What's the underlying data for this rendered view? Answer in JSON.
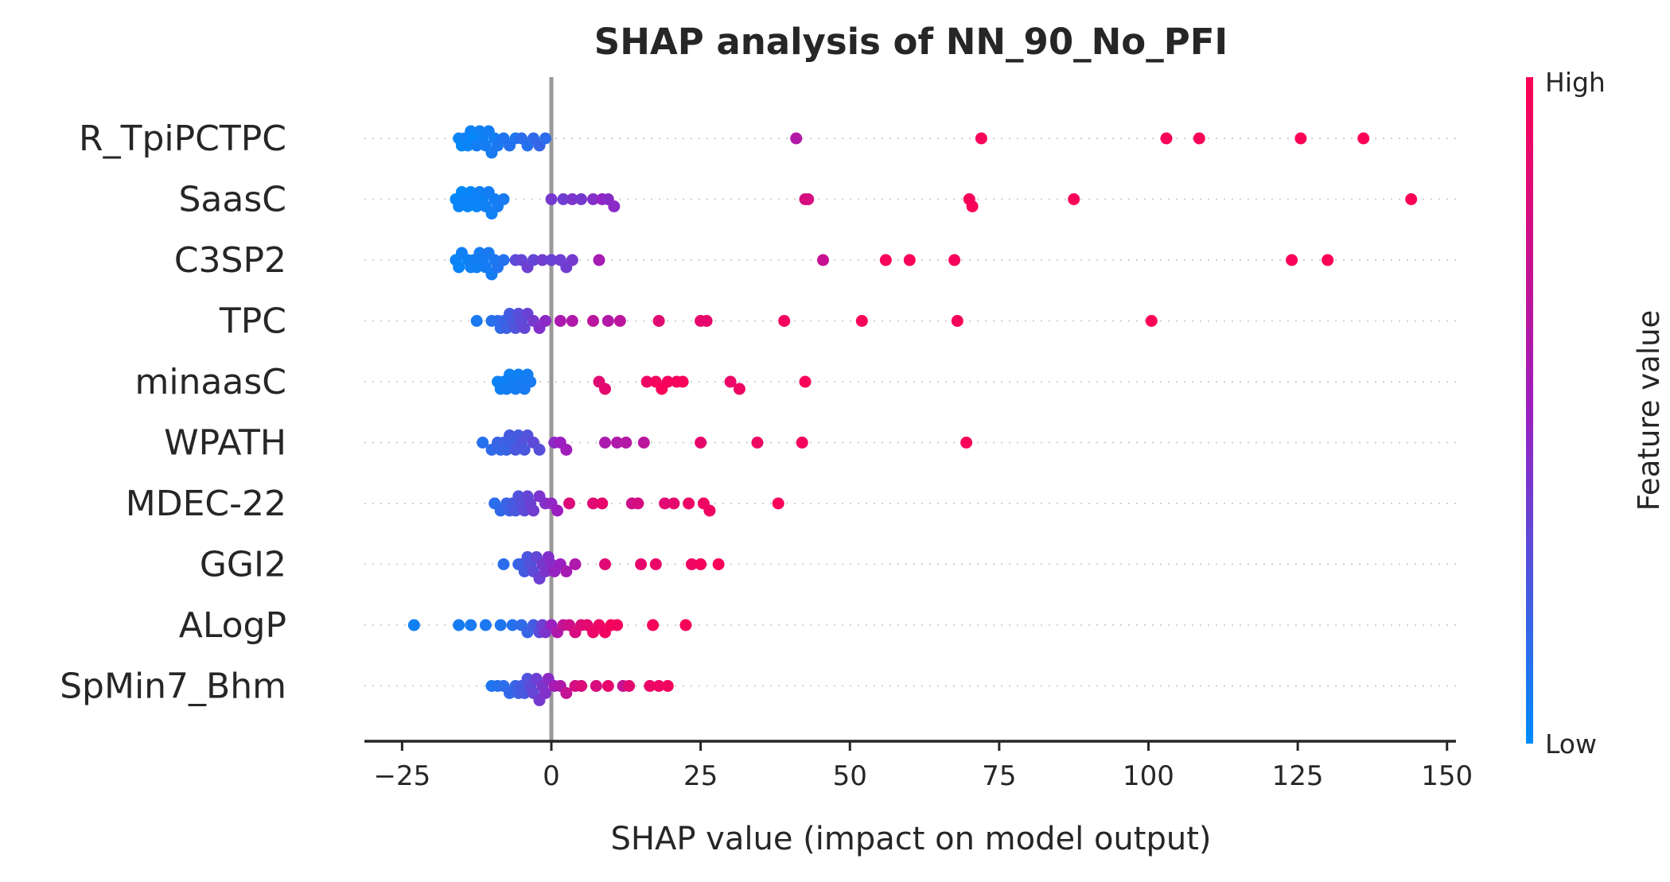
{
  "chart_data": {
    "type": "scatter",
    "title": "SHAP analysis of NN_90_No_PFI",
    "xlabel": "SHAP value (impact on model output)",
    "xlim": [
      -31,
      152
    ],
    "x_ticks": [
      -25,
      0,
      25,
      50,
      75,
      100,
      125,
      150
    ],
    "x_tick_labels": [
      "−25",
      "0",
      "25",
      "50",
      "75",
      "100",
      "125",
      "150"
    ],
    "zero_line": true,
    "grid": false,
    "colorbar": {
      "label": "Feature value",
      "high_label": "High",
      "low_label": "Low",
      "low_color": "#008bfb",
      "mid_color": "#9b1fc0",
      "high_color": "#ff0052"
    },
    "features": [
      {
        "name": "R_TpiPCTPC",
        "points": [
          {
            "x": -15.5,
            "c": 0.03
          },
          {
            "x": -15,
            "c": 0.02
          },
          {
            "x": -14.5,
            "c": 0.05
          },
          {
            "x": -14,
            "c": 0.03
          },
          {
            "x": -13.5,
            "c": 0.04
          },
          {
            "x": -13,
            "c": 0.02
          },
          {
            "x": -12.5,
            "c": 0.06
          },
          {
            "x": -12,
            "c": 0.05
          },
          {
            "x": -11.5,
            "c": 0.04
          },
          {
            "x": -11,
            "c": 0.07
          },
          {
            "x": -10.5,
            "c": 0.06
          },
          {
            "x": -10,
            "c": 0.08
          },
          {
            "x": -9.5,
            "c": 0.06
          },
          {
            "x": -9,
            "c": 0.09
          },
          {
            "x": -8,
            "c": 0.1
          },
          {
            "x": -7,
            "c": 0.12
          },
          {
            "x": -6,
            "c": 0.1
          },
          {
            "x": -5,
            "c": 0.14
          },
          {
            "x": -4,
            "c": 0.12
          },
          {
            "x": -3,
            "c": 0.15
          },
          {
            "x": -2,
            "c": 0.17
          },
          {
            "x": -1,
            "c": 0.14
          },
          {
            "x": 41,
            "c": 0.62
          },
          {
            "x": 72,
            "c": 0.97
          },
          {
            "x": 103,
            "c": 0.97
          },
          {
            "x": 108.5,
            "c": 0.97
          },
          {
            "x": 125.5,
            "c": 0.98
          },
          {
            "x": 136,
            "c": 0.98
          }
        ]
      },
      {
        "name": "SaasC",
        "points": [
          {
            "x": -16,
            "c": 0.02
          },
          {
            "x": -15.5,
            "c": 0.03
          },
          {
            "x": -15,
            "c": 0.02
          },
          {
            "x": -14.5,
            "c": 0.04
          },
          {
            "x": -14,
            "c": 0.03
          },
          {
            "x": -13.5,
            "c": 0.02
          },
          {
            "x": -13,
            "c": 0.04
          },
          {
            "x": -12.5,
            "c": 0.03
          },
          {
            "x": -12,
            "c": 0.05
          },
          {
            "x": -11.5,
            "c": 0.04
          },
          {
            "x": -11,
            "c": 0.05
          },
          {
            "x": -10.5,
            "c": 0.06
          },
          {
            "x": -10,
            "c": 0.05
          },
          {
            "x": -9.5,
            "c": 0.06
          },
          {
            "x": -9,
            "c": 0.07
          },
          {
            "x": -8,
            "c": 0.08
          },
          {
            "x": 0,
            "c": 0.38
          },
          {
            "x": 2,
            "c": 0.36
          },
          {
            "x": 3.5,
            "c": 0.4
          },
          {
            "x": 5,
            "c": 0.38
          },
          {
            "x": 7,
            "c": 0.42
          },
          {
            "x": 8.5,
            "c": 0.47
          },
          {
            "x": 9.5,
            "c": 0.44
          },
          {
            "x": 10.5,
            "c": 0.45
          },
          {
            "x": 42.5,
            "c": 0.78
          },
          {
            "x": 43,
            "c": 0.8
          },
          {
            "x": 70,
            "c": 0.97
          },
          {
            "x": 70.5,
            "c": 0.97
          },
          {
            "x": 87.5,
            "c": 0.97
          },
          {
            "x": 144,
            "c": 0.98
          }
        ]
      },
      {
        "name": "C3SP2",
        "points": [
          {
            "x": -16,
            "c": 0.04
          },
          {
            "x": -15.5,
            "c": 0.03
          },
          {
            "x": -15,
            "c": 0.05
          },
          {
            "x": -14,
            "c": 0.04
          },
          {
            "x": -13.5,
            "c": 0.05
          },
          {
            "x": -13,
            "c": 0.06
          },
          {
            "x": -12.5,
            "c": 0.05
          },
          {
            "x": -12,
            "c": 0.07
          },
          {
            "x": -11.5,
            "c": 0.06
          },
          {
            "x": -11,
            "c": 0.07
          },
          {
            "x": -10.5,
            "c": 0.08
          },
          {
            "x": -10,
            "c": 0.07
          },
          {
            "x": -9.5,
            "c": 0.09
          },
          {
            "x": -9,
            "c": 0.1
          },
          {
            "x": -8,
            "c": 0.12
          },
          {
            "x": -6,
            "c": 0.3
          },
          {
            "x": -5,
            "c": 0.33
          },
          {
            "x": -4,
            "c": 0.35
          },
          {
            "x": -3,
            "c": 0.32
          },
          {
            "x": -1.5,
            "c": 0.36
          },
          {
            "x": 0,
            "c": 0.34
          },
          {
            "x": 1.5,
            "c": 0.35
          },
          {
            "x": 2.5,
            "c": 0.36
          },
          {
            "x": 3.5,
            "c": 0.38
          },
          {
            "x": 8,
            "c": 0.55
          },
          {
            "x": 45.5,
            "c": 0.72
          },
          {
            "x": 56,
            "c": 0.97
          },
          {
            "x": 60,
            "c": 0.97
          },
          {
            "x": 67.5,
            "c": 0.96
          },
          {
            "x": 124,
            "c": 0.97
          },
          {
            "x": 130,
            "c": 0.98
          }
        ]
      },
      {
        "name": "TPC",
        "points": [
          {
            "x": -12.5,
            "c": 0.08
          },
          {
            "x": -10,
            "c": 0.12
          },
          {
            "x": -9,
            "c": 0.14
          },
          {
            "x": -8.5,
            "c": 0.15
          },
          {
            "x": -8,
            "c": 0.17
          },
          {
            "x": -7.5,
            "c": 0.2
          },
          {
            "x": -7,
            "c": 0.22
          },
          {
            "x": -6.5,
            "c": 0.24
          },
          {
            "x": -6,
            "c": 0.26
          },
          {
            "x": -5.5,
            "c": 0.28
          },
          {
            "x": -5,
            "c": 0.3
          },
          {
            "x": -4.5,
            "c": 0.32
          },
          {
            "x": -4,
            "c": 0.34
          },
          {
            "x": -3,
            "c": 0.38
          },
          {
            "x": -2,
            "c": 0.42
          },
          {
            "x": -1,
            "c": 0.45
          },
          {
            "x": 1.5,
            "c": 0.58
          },
          {
            "x": 3.5,
            "c": 0.6
          },
          {
            "x": 7,
            "c": 0.65
          },
          {
            "x": 9.5,
            "c": 0.62
          },
          {
            "x": 11.5,
            "c": 0.66
          },
          {
            "x": 18,
            "c": 0.85
          },
          {
            "x": 25,
            "c": 0.88
          },
          {
            "x": 26,
            "c": 0.88
          },
          {
            "x": 39,
            "c": 0.95
          },
          {
            "x": 52,
            "c": 0.97
          },
          {
            "x": 68,
            "c": 0.96
          },
          {
            "x": 100.5,
            "c": 0.98
          }
        ]
      },
      {
        "name": "minaasC",
        "points": [
          {
            "x": -9,
            "c": 0.04
          },
          {
            "x": -8.5,
            "c": 0.05
          },
          {
            "x": -8,
            "c": 0.04
          },
          {
            "x": -7.5,
            "c": 0.06
          },
          {
            "x": -7,
            "c": 0.05
          },
          {
            "x": -6.5,
            "c": 0.06
          },
          {
            "x": -6,
            "c": 0.07
          },
          {
            "x": -5.5,
            "c": 0.05
          },
          {
            "x": -5,
            "c": 0.07
          },
          {
            "x": -4.5,
            "c": 0.08
          },
          {
            "x": -4,
            "c": 0.06
          },
          {
            "x": -3.5,
            "c": 0.08
          },
          {
            "x": 8,
            "c": 0.85
          },
          {
            "x": 9,
            "c": 0.87
          },
          {
            "x": 16,
            "c": 0.92
          },
          {
            "x": 17.5,
            "c": 0.95
          },
          {
            "x": 18.5,
            "c": 0.97
          },
          {
            "x": 19.5,
            "c": 0.96
          },
          {
            "x": 21,
            "c": 0.95
          },
          {
            "x": 22,
            "c": 0.97
          },
          {
            "x": 30,
            "c": 0.9
          },
          {
            "x": 31.5,
            "c": 0.92
          },
          {
            "x": 42.5,
            "c": 0.97
          }
        ]
      },
      {
        "name": "WPATH",
        "points": [
          {
            "x": -11.5,
            "c": 0.12
          },
          {
            "x": -10,
            "c": 0.15
          },
          {
            "x": -9,
            "c": 0.18
          },
          {
            "x": -8.5,
            "c": 0.16
          },
          {
            "x": -8,
            "c": 0.2
          },
          {
            "x": -7.5,
            "c": 0.18
          },
          {
            "x": -7,
            "c": 0.22
          },
          {
            "x": -6.5,
            "c": 0.2
          },
          {
            "x": -6,
            "c": 0.24
          },
          {
            "x": -5.5,
            "c": 0.22
          },
          {
            "x": -5,
            "c": 0.26
          },
          {
            "x": -4.5,
            "c": 0.24
          },
          {
            "x": -4,
            "c": 0.27
          },
          {
            "x": -3,
            "c": 0.3
          },
          {
            "x": -2,
            "c": 0.28
          },
          {
            "x": 0.5,
            "c": 0.45
          },
          {
            "x": 1.5,
            "c": 0.5
          },
          {
            "x": 2.5,
            "c": 0.52
          },
          {
            "x": 9,
            "c": 0.58
          },
          {
            "x": 11,
            "c": 0.6
          },
          {
            "x": 12.5,
            "c": 0.62
          },
          {
            "x": 15.5,
            "c": 0.66
          },
          {
            "x": 25,
            "c": 0.88
          },
          {
            "x": 34.5,
            "c": 0.92
          },
          {
            "x": 42,
            "c": 0.95
          },
          {
            "x": 69.5,
            "c": 0.97
          }
        ]
      },
      {
        "name": "MDEC-22",
        "points": [
          {
            "x": -9.5,
            "c": 0.14
          },
          {
            "x": -8.5,
            "c": 0.16
          },
          {
            "x": -7.5,
            "c": 0.18
          },
          {
            "x": -7,
            "c": 0.2
          },
          {
            "x": -6.5,
            "c": 0.22
          },
          {
            "x": -6,
            "c": 0.24
          },
          {
            "x": -5.5,
            "c": 0.26
          },
          {
            "x": -5,
            "c": 0.28
          },
          {
            "x": -4.5,
            "c": 0.3
          },
          {
            "x": -4,
            "c": 0.32
          },
          {
            "x": -3.5,
            "c": 0.34
          },
          {
            "x": -3,
            "c": 0.36
          },
          {
            "x": -2,
            "c": 0.4
          },
          {
            "x": -1,
            "c": 0.42
          },
          {
            "x": 0,
            "c": 0.46
          },
          {
            "x": 1,
            "c": 0.5
          },
          {
            "x": 3,
            "c": 0.82
          },
          {
            "x": 7,
            "c": 0.85
          },
          {
            "x": 8.5,
            "c": 0.88
          },
          {
            "x": 13.5,
            "c": 0.75
          },
          {
            "x": 14.5,
            "c": 0.8
          },
          {
            "x": 19,
            "c": 0.85
          },
          {
            "x": 20.5,
            "c": 0.87
          },
          {
            "x": 23,
            "c": 0.9
          },
          {
            "x": 25.5,
            "c": 0.92
          },
          {
            "x": 26.5,
            "c": 0.93
          },
          {
            "x": 38,
            "c": 0.97
          }
        ]
      },
      {
        "name": "GGI2",
        "points": [
          {
            "x": -8,
            "c": 0.14
          },
          {
            "x": -5.5,
            "c": 0.18
          },
          {
            "x": -5,
            "c": 0.2
          },
          {
            "x": -4.5,
            "c": 0.22
          },
          {
            "x": -4,
            "c": 0.25
          },
          {
            "x": -3.5,
            "c": 0.27
          },
          {
            "x": -3,
            "c": 0.3
          },
          {
            "x": -2.5,
            "c": 0.32
          },
          {
            "x": -2,
            "c": 0.35
          },
          {
            "x": -1.5,
            "c": 0.38
          },
          {
            "x": -1,
            "c": 0.4
          },
          {
            "x": -0.5,
            "c": 0.42
          },
          {
            "x": 0,
            "c": 0.44
          },
          {
            "x": 0.5,
            "c": 0.48
          },
          {
            "x": 1.5,
            "c": 0.5
          },
          {
            "x": 2.5,
            "c": 0.55
          },
          {
            "x": 4,
            "c": 0.6
          },
          {
            "x": 9,
            "c": 0.85
          },
          {
            "x": 15,
            "c": 0.88
          },
          {
            "x": 17.5,
            "c": 0.9
          },
          {
            "x": 23.5,
            "c": 0.92
          },
          {
            "x": 25,
            "c": 0.95
          },
          {
            "x": 28,
            "c": 0.97
          }
        ]
      },
      {
        "name": "ALogP",
        "points": [
          {
            "x": -23,
            "c": 0.05
          },
          {
            "x": -15.5,
            "c": 0.07
          },
          {
            "x": -13.5,
            "c": 0.08
          },
          {
            "x": -11,
            "c": 0.09
          },
          {
            "x": -8.5,
            "c": 0.1
          },
          {
            "x": -6.5,
            "c": 0.12
          },
          {
            "x": -5,
            "c": 0.15
          },
          {
            "x": -4,
            "c": 0.18
          },
          {
            "x": -3,
            "c": 0.22
          },
          {
            "x": -2,
            "c": 0.3
          },
          {
            "x": -1.5,
            "c": 0.35
          },
          {
            "x": -1,
            "c": 0.4
          },
          {
            "x": 0,
            "c": 0.5
          },
          {
            "x": 1,
            "c": 0.6
          },
          {
            "x": 2,
            "c": 0.7
          },
          {
            "x": 3,
            "c": 0.75
          },
          {
            "x": 4,
            "c": 0.8
          },
          {
            "x": 5,
            "c": 0.83
          },
          {
            "x": 6,
            "c": 0.86
          },
          {
            "x": 7,
            "c": 0.9
          },
          {
            "x": 8,
            "c": 0.92
          },
          {
            "x": 9,
            "c": 0.93
          },
          {
            "x": 10,
            "c": 0.95
          },
          {
            "x": 11,
            "c": 0.94
          },
          {
            "x": 17,
            "c": 0.96
          },
          {
            "x": 22.5,
            "c": 0.97
          }
        ]
      },
      {
        "name": "SpMin7_Bhm",
        "points": [
          {
            "x": -10,
            "c": 0.1
          },
          {
            "x": -9,
            "c": 0.12
          },
          {
            "x": -8,
            "c": 0.14
          },
          {
            "x": -7,
            "c": 0.16
          },
          {
            "x": -6,
            "c": 0.18
          },
          {
            "x": -5.5,
            "c": 0.2
          },
          {
            "x": -5,
            "c": 0.22
          },
          {
            "x": -4.5,
            "c": 0.24
          },
          {
            "x": -4,
            "c": 0.26
          },
          {
            "x": -3.5,
            "c": 0.3
          },
          {
            "x": -3,
            "c": 0.32
          },
          {
            "x": -2.5,
            "c": 0.35
          },
          {
            "x": -2,
            "c": 0.38
          },
          {
            "x": -1.5,
            "c": 0.4
          },
          {
            "x": -1,
            "c": 0.42
          },
          {
            "x": -0.5,
            "c": 0.45
          },
          {
            "x": 0.5,
            "c": 0.55
          },
          {
            "x": 1.5,
            "c": 0.6
          },
          {
            "x": 2.5,
            "c": 0.7
          },
          {
            "x": 4,
            "c": 0.78
          },
          {
            "x": 5,
            "c": 0.82
          },
          {
            "x": 7.5,
            "c": 0.8
          },
          {
            "x": 9.5,
            "c": 0.88
          },
          {
            "x": 12,
            "c": 0.7
          },
          {
            "x": 13,
            "c": 0.86
          },
          {
            "x": 16.5,
            "c": 0.9
          },
          {
            "x": 18,
            "c": 0.92
          },
          {
            "x": 19.5,
            "c": 0.94
          }
        ]
      }
    ]
  }
}
